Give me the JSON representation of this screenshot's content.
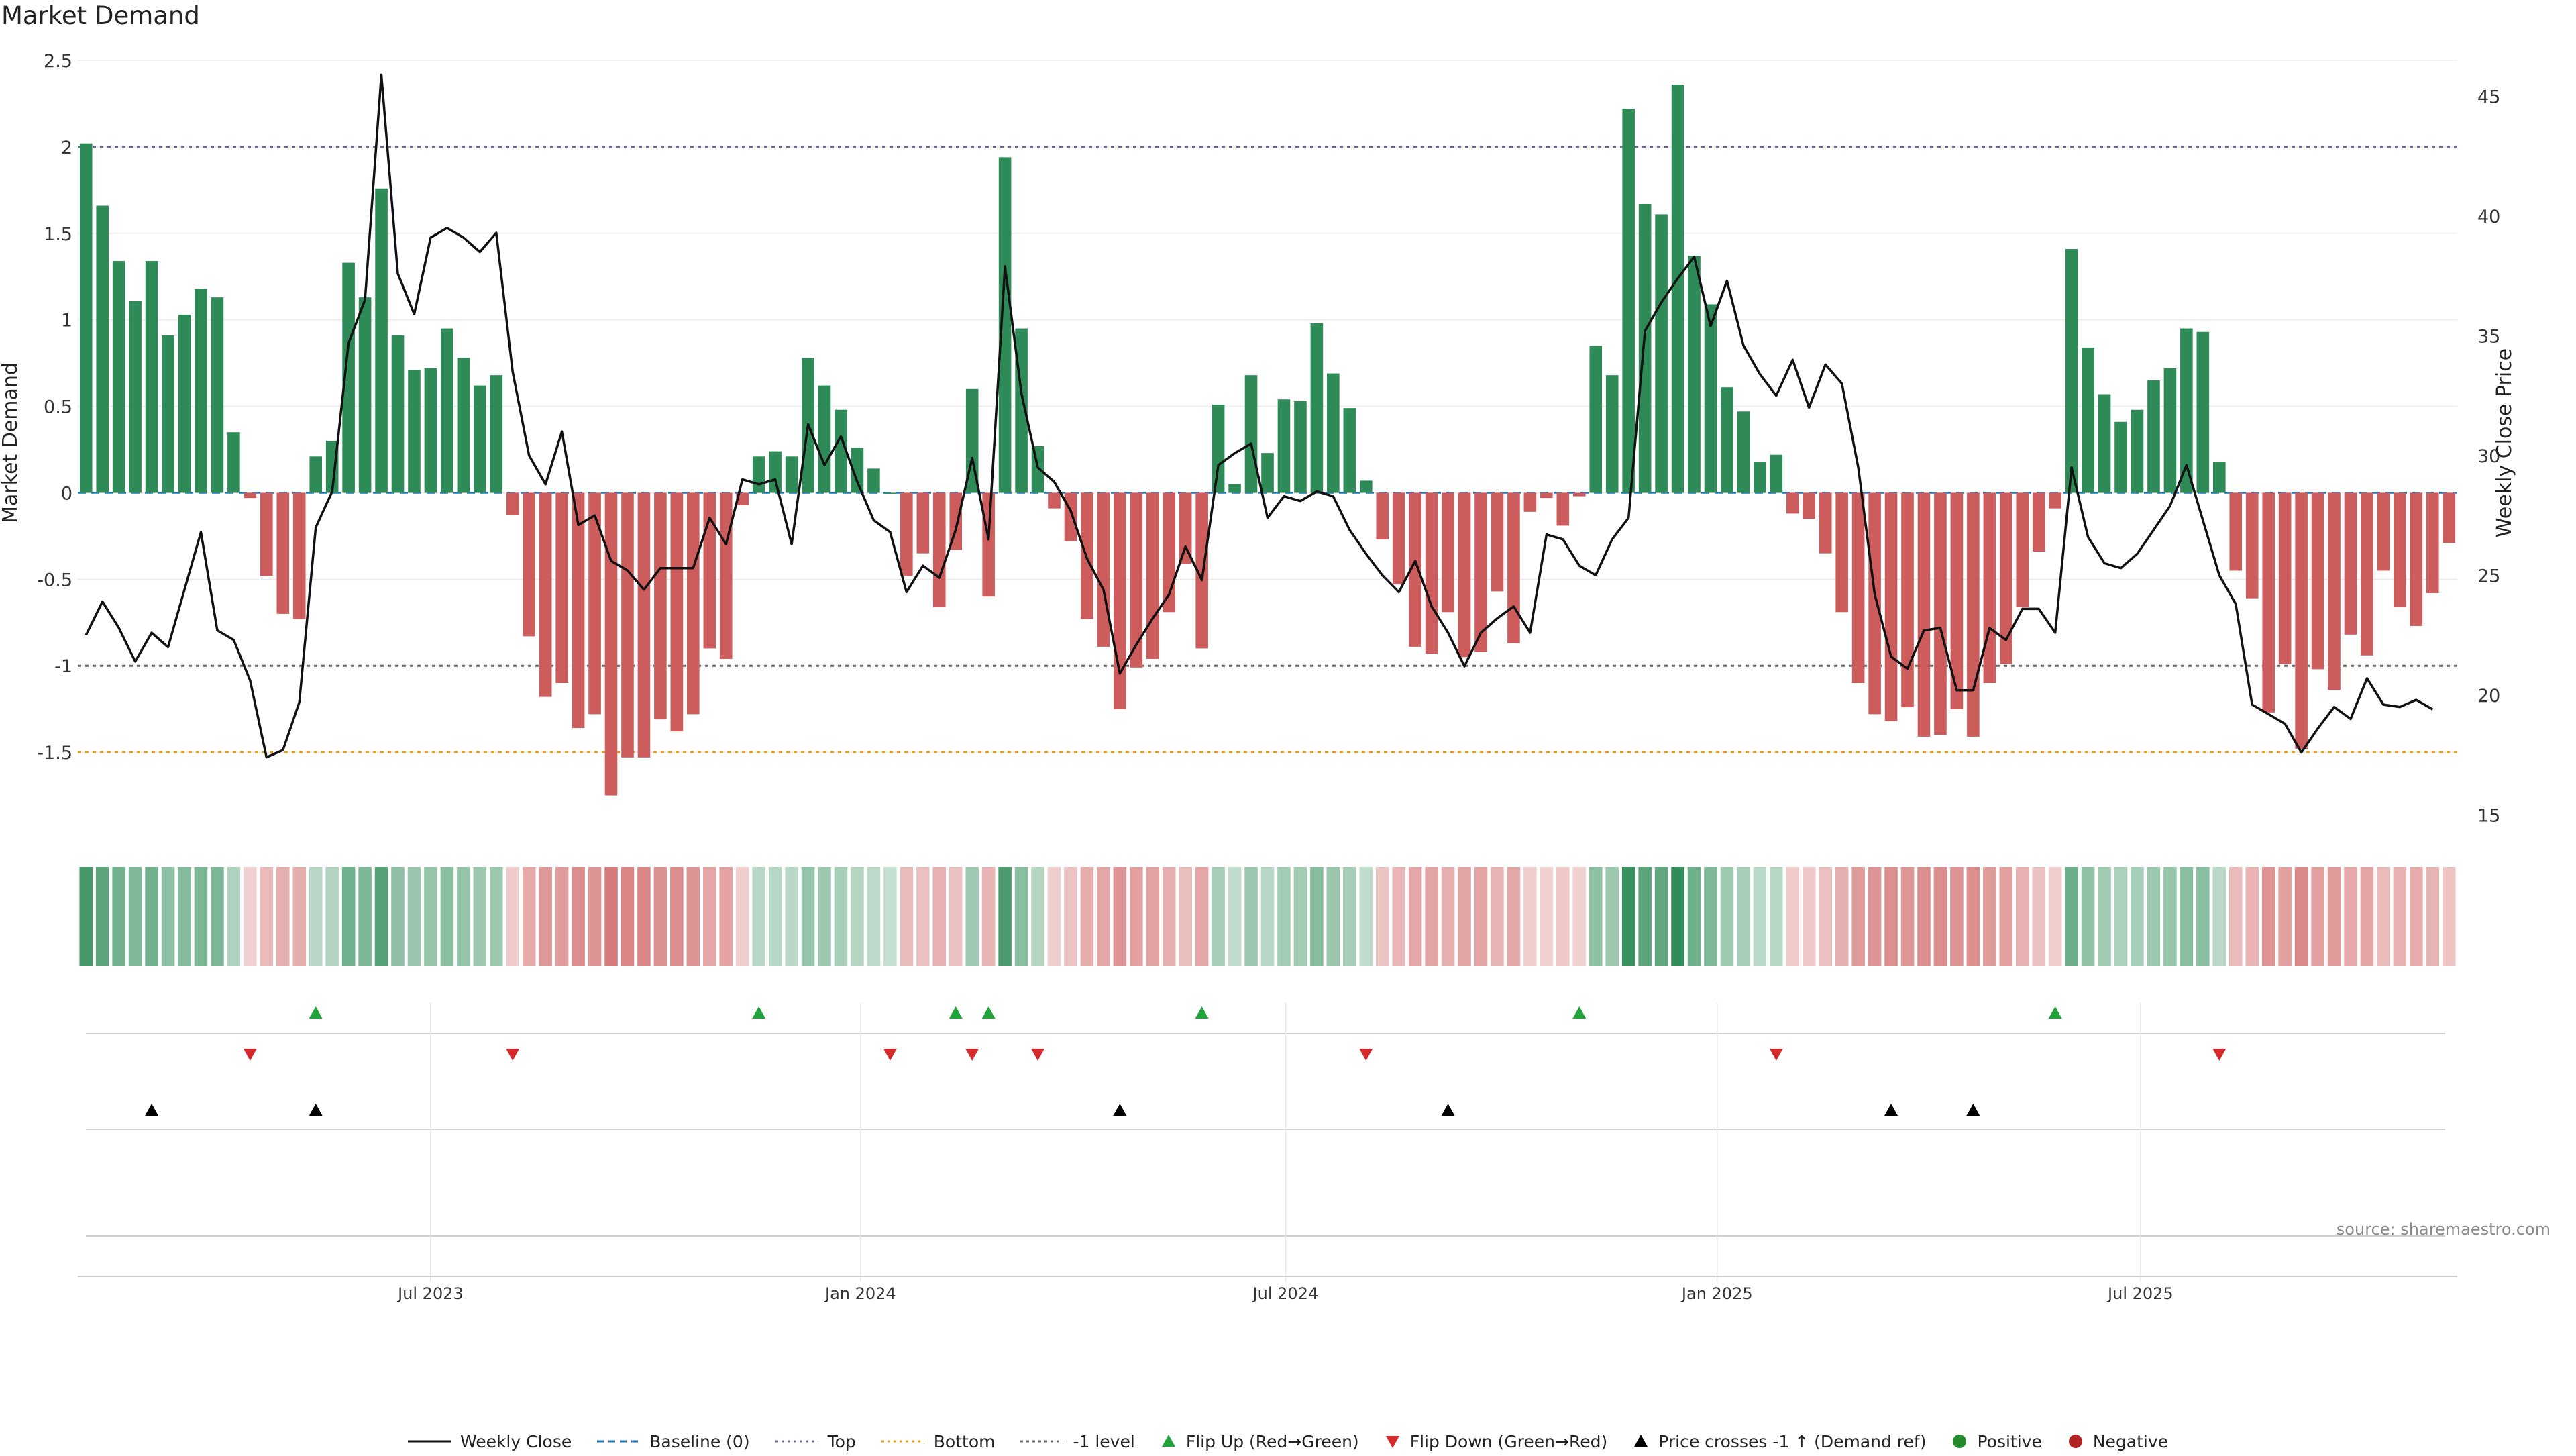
{
  "title": "Market Demand",
  "source": "source: sharemaestro.com",
  "colors": {
    "positive": "#2e8b57",
    "negative": "#cd5c5c",
    "price": "#111111",
    "flip_up": "#22a33a",
    "flip_down": "#d62828",
    "cross": "#000000",
    "top_line": "#6b6b9a",
    "bottom_line": "#e0a020",
    "minus1_line": "#666666",
    "baseline": "#1f77b4"
  },
  "chart_data": {
    "type": "bar",
    "title": "Market Demand",
    "ylabel": "Market Demand",
    "y2label": "Weekly Close Price",
    "ylim": [
      -2.0,
      2.5
    ],
    "y2lim": [
      14,
      46.5
    ],
    "yticks": [
      "2.5",
      "2",
      "1.5",
      "1",
      "0.5",
      "0",
      "-0.5",
      "-1",
      "-1.5"
    ],
    "y2ticks": [
      "45",
      "40",
      "35",
      "30",
      "25",
      "20",
      "15"
    ],
    "xticks": [
      {
        "label": "Jul 2023",
        "week": 21.5
      },
      {
        "label": "Jan 2024",
        "week": 47.7
      },
      {
        "label": "Jul 2024",
        "week": 73.6
      },
      {
        "label": "Jan 2025",
        "week": 99.9
      },
      {
        "label": "Jul 2025",
        "week": 125.7
      }
    ],
    "reference_lines": {
      "top": 2.0,
      "bottom": -1.5,
      "minus1": -1.0,
      "baseline": 0
    },
    "series": [
      {
        "name": "Market Demand",
        "values": [
          2.02,
          1.66,
          1.34,
          1.11,
          1.34,
          0.91,
          1.03,
          1.18,
          1.13,
          0.35,
          -0.03,
          -0.48,
          -0.7,
          -0.73,
          0.21,
          0.3,
          1.33,
          1.13,
          1.76,
          0.91,
          0.71,
          0.72,
          0.95,
          0.78,
          0.62,
          0.68,
          -0.13,
          -0.83,
          -1.18,
          -1.1,
          -1.36,
          -1.28,
          -1.75,
          -1.53,
          -1.53,
          -1.31,
          -1.38,
          -1.28,
          -0.9,
          -0.96,
          -0.07,
          0.21,
          0.24,
          0.21,
          0.78,
          0.62,
          0.48,
          0.26,
          0.14,
          0.0,
          -0.48,
          -0.35,
          -0.66,
          -0.33,
          0.6,
          -0.6,
          1.94,
          0.95,
          0.27,
          -0.09,
          -0.28,
          -0.73,
          -0.89,
          -1.25,
          -1.01,
          -0.96,
          -0.69,
          -0.41,
          -0.9,
          0.51,
          0.05,
          0.68,
          0.23,
          0.54,
          0.53,
          0.98,
          0.69,
          0.49,
          0.07,
          -0.27,
          -0.53,
          -0.89,
          -0.93,
          -0.69,
          -0.95,
          -0.92,
          -0.57,
          -0.87,
          -0.11,
          -0.03,
          -0.19,
          -0.02,
          0.85,
          0.68,
          2.22,
          1.67,
          1.61,
          2.36,
          1.37,
          1.09,
          0.61,
          0.47,
          0.18,
          0.22,
          -0.12,
          -0.15,
          -0.35,
          -0.69,
          -1.1,
          -1.28,
          -1.32,
          -1.24,
          -1.41,
          -1.4,
          -1.25,
          -1.41,
          -1.1,
          -0.99,
          -0.66,
          -0.34,
          -0.09,
          1.41,
          0.84,
          0.57,
          0.41,
          0.48,
          0.65,
          0.72,
          0.95,
          0.93,
          0.18,
          -0.45,
          -0.61,
          -1.27,
          -0.99,
          -1.48,
          -1.02,
          -1.14,
          -0.82,
          -0.94,
          -0.45,
          -0.66,
          -0.77,
          -0.58,
          -0.29
        ]
      },
      {
        "name": "Weekly Close",
        "values": [
          22.5,
          23.9,
          22.8,
          21.4,
          22.6,
          22.0,
          24.4,
          26.8,
          22.7,
          22.3,
          20.6,
          17.4,
          17.7,
          19.7,
          27.0,
          28.5,
          34.7,
          36.5,
          45.9,
          37.6,
          35.9,
          39.1,
          39.5,
          39.1,
          38.5,
          39.3,
          33.5,
          30.0,
          28.8,
          31.0,
          27.1,
          27.5,
          25.6,
          25.2,
          24.4,
          25.3,
          25.3,
          25.3,
          27.4,
          26.3,
          29.0,
          28.8,
          29.0,
          26.3,
          31.3,
          29.6,
          30.8,
          28.9,
          27.3,
          26.8,
          24.3,
          25.4,
          24.9,
          26.9,
          29.9,
          26.5,
          37.9,
          32.6,
          29.5,
          28.9,
          27.7,
          25.7,
          24.4,
          20.9,
          22.1,
          23.2,
          24.2,
          26.2,
          24.8,
          29.6,
          30.1,
          30.5,
          27.4,
          28.3,
          28.1,
          28.5,
          28.3,
          26.9,
          25.9,
          25.0,
          24.3,
          25.6,
          23.7,
          22.6,
          21.2,
          22.6,
          23.2,
          23.7,
          22.6,
          26.7,
          26.5,
          25.4,
          25.0,
          26.5,
          27.4,
          35.2,
          36.4,
          37.4,
          38.3,
          35.4,
          37.3,
          34.6,
          33.4,
          32.5,
          34.0,
          32.0,
          33.8,
          33.0,
          29.5,
          24.2,
          21.6,
          21.1,
          22.7,
          22.8,
          20.2,
          20.2,
          22.8,
          22.3,
          23.6,
          23.6,
          22.6,
          29.5,
          26.6,
          25.5,
          25.3,
          25.9,
          26.9,
          27.9,
          29.6,
          27.3,
          25.0,
          23.8,
          19.6,
          19.2,
          18.8,
          17.6,
          18.6,
          19.5,
          19.0,
          20.7,
          19.6,
          19.5,
          19.8,
          19.4
        ]
      },
      {
        "name": "Flip Up (Red→Green)",
        "weeks": [
          14,
          41,
          53,
          55,
          68,
          91,
          120
        ]
      },
      {
        "name": "Flip Down (Green→Red)",
        "weeks": [
          10,
          26,
          49,
          54,
          58,
          78,
          103,
          130
        ]
      },
      {
        "name": "Price crosses -1 ↑ (Demand ref)",
        "weeks": [
          4,
          14,
          63,
          83,
          110,
          115
        ]
      }
    ]
  },
  "legend": [
    {
      "label": "Weekly Close",
      "kind": "line"
    },
    {
      "label": "Baseline (0)",
      "kind": "baseline"
    },
    {
      "label": "Top",
      "kind": "top"
    },
    {
      "label": "Bottom",
      "kind": "bottom"
    },
    {
      "label": "-1 level",
      "kind": "minus1"
    },
    {
      "label": "Flip Up (Red→Green)",
      "kind": "flipup"
    },
    {
      "label": "Flip Down (Green→Red)",
      "kind": "flipdown"
    },
    {
      "label": "Price crosses -1 ↑ (Demand ref)",
      "kind": "cross"
    },
    {
      "label": "Positive",
      "kind": "positive"
    },
    {
      "label": "Negative",
      "kind": "negative"
    }
  ]
}
